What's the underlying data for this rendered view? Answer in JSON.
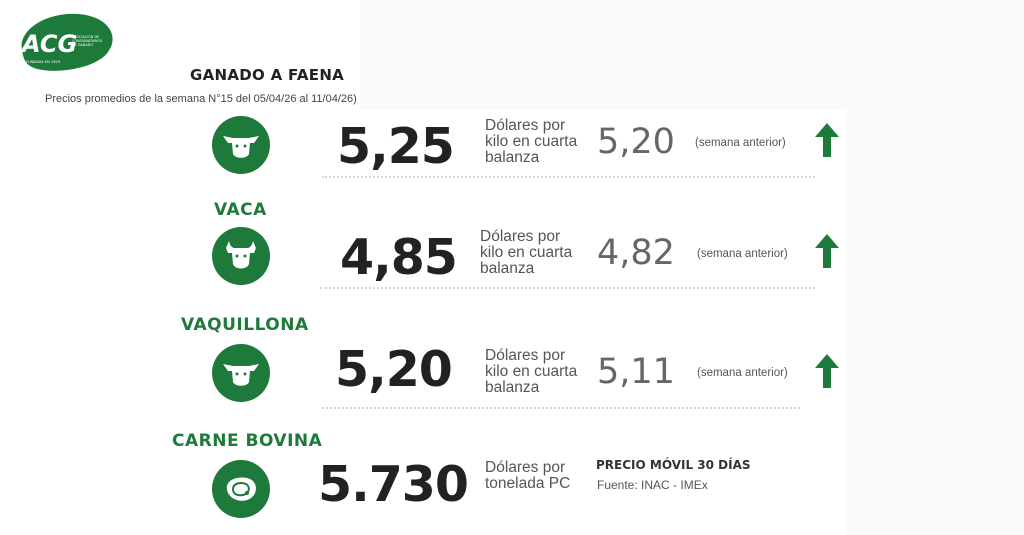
{
  "logo": {
    "text": "ACG",
    "tagline": "ASOCIACIÓN DE CONSIGNATARIOS DE GANADO",
    "founded": "FUNDADA EN 1929",
    "color": "#1e7a3a"
  },
  "header": {
    "title": "GANADO A FAENA",
    "subtitle": "Precios promedios de la semana N°15 del 05/04/26 al 11/04/26)"
  },
  "rows": [
    {
      "icon": "cow-head-icon",
      "price": "5,25",
      "unit_lines": [
        "Dólares por",
        "kilo en cuarta",
        "balanza"
      ],
      "previous": "5,20",
      "previous_label": "(semana anterior)",
      "trend": "up"
    },
    {
      "category": "VACA",
      "icon": "cow-head-icon",
      "price": "4,85",
      "unit_lines": [
        "Dólares por",
        "kilo en cuarta",
        "balanza"
      ],
      "previous": "4,82",
      "previous_label": "(semana anterior)",
      "trend": "up"
    },
    {
      "category": "VAQUILLONA",
      "icon": "cow-head-icon",
      "price": "5,20",
      "unit_lines": [
        "Dólares por",
        "kilo en cuarta",
        "balanza"
      ],
      "previous": "5,11",
      "previous_label": "(semana anterior)",
      "trend": "up"
    },
    {
      "category": "CARNE BOVINA",
      "icon": "meat-cut-icon",
      "price": "5.730",
      "unit_lines": [
        "Dólares por",
        "tonelada PC"
      ],
      "moving_title": "PRECIO MÓVIL 30 DÍAS",
      "source": "Fuente: INAC - IMEx"
    }
  ],
  "colors": {
    "accent": "#1e7a3a",
    "text": "#222222"
  }
}
